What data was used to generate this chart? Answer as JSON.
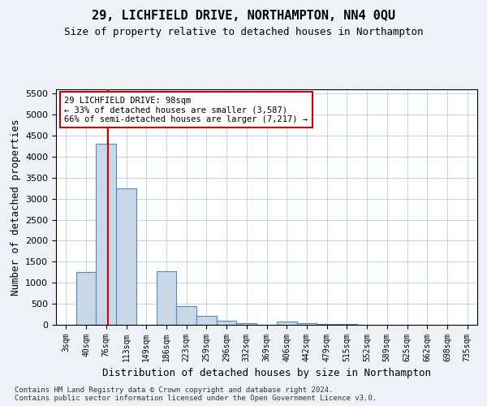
{
  "title1": "29, LICHFIELD DRIVE, NORTHAMPTON, NN4 0QU",
  "title2": "Size of property relative to detached houses in Northampton",
  "xlabel": "Distribution of detached houses by size in Northampton",
  "ylabel": "Number of detached properties",
  "footnote": "Contains HM Land Registry data © Crown copyright and database right 2024.\nContains public sector information licensed under the Open Government Licence v3.0.",
  "bin_labels": [
    "3sqm",
    "40sqm",
    "76sqm",
    "113sqm",
    "149sqm",
    "186sqm",
    "223sqm",
    "259sqm",
    "296sqm",
    "332sqm",
    "369sqm",
    "406sqm",
    "442sqm",
    "479sqm",
    "515sqm",
    "552sqm",
    "589sqm",
    "625sqm",
    "662sqm",
    "698sqm",
    "735sqm"
  ],
  "bar_heights": [
    0,
    1250,
    4300,
    3250,
    0,
    1270,
    450,
    210,
    100,
    30,
    0,
    75,
    30,
    10,
    10,
    5,
    5,
    5,
    5,
    5,
    0
  ],
  "bar_color": "#c8d8e8",
  "bar_edgecolor": "#5588bb",
  "vline_color": "#cc0000",
  "annotation_text": "29 LICHFIELD DRIVE: 98sqm\n← 33% of detached houses are smaller (3,587)\n66% of semi-detached houses are larger (7,217) →",
  "annotation_box_color": "#ffffff",
  "annotation_box_edgecolor": "#cc0000",
  "ylim": [
    0,
    5600
  ],
  "yticks": [
    0,
    500,
    1000,
    1500,
    2000,
    2500,
    3000,
    3500,
    4000,
    4500,
    5000,
    5500
  ],
  "bg_color": "#eef2f7",
  "plot_bg_color": "#ffffff",
  "title1_fontsize": 11,
  "title2_fontsize": 9,
  "xlabel_fontsize": 9,
  "ylabel_fontsize": 9
}
